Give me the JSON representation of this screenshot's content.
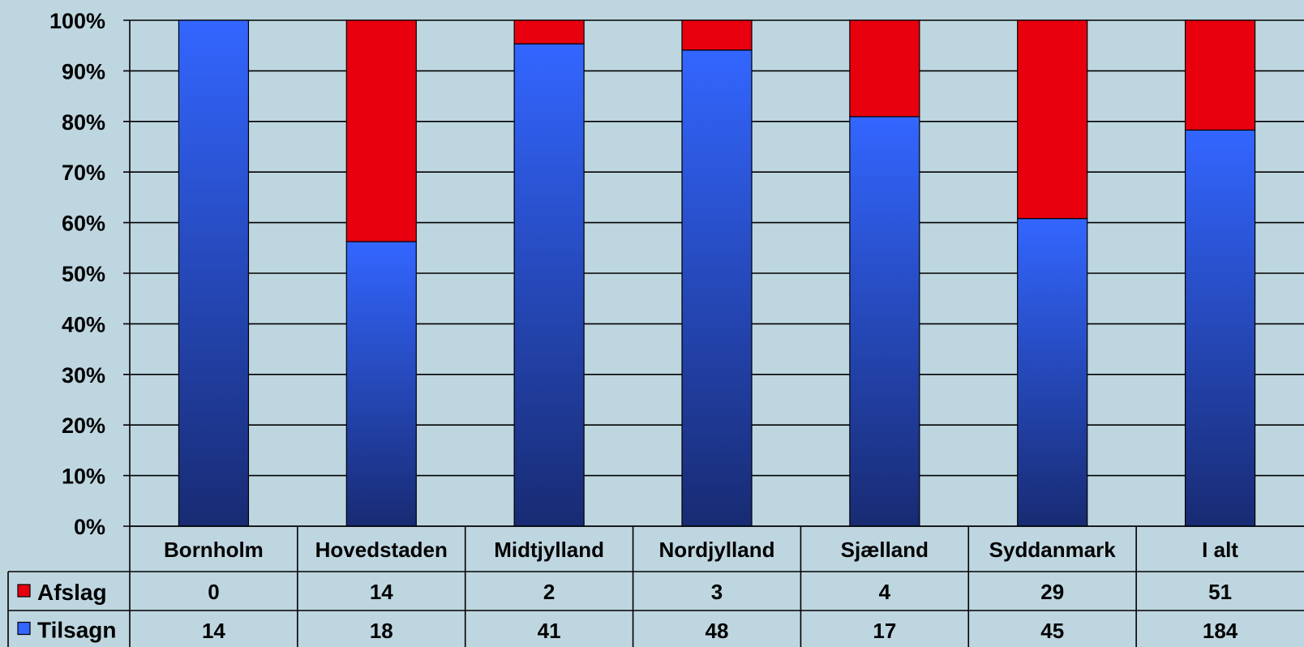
{
  "chart_data": {
    "type": "bar",
    "stacked": true,
    "normalized": true,
    "categories": [
      "Bornholm",
      "Hovedstaden",
      "Midtjylland",
      "Nordjylland",
      "Sjælland",
      "Syddanmark",
      "I alt"
    ],
    "series": [
      {
        "name": "Afslag",
        "values": [
          0,
          14,
          2,
          3,
          4,
          29,
          51
        ],
        "color": "#e8000f"
      },
      {
        "name": "Tilsagn",
        "values": [
          14,
          18,
          41,
          48,
          17,
          45,
          184
        ],
        "color": "#3366ff"
      }
    ],
    "yticks": [
      "0%",
      "10%",
      "20%",
      "30%",
      "40%",
      "50%",
      "60%",
      "70%",
      "80%",
      "90%",
      "100%"
    ],
    "ylim": [
      0,
      100
    ],
    "grid": true,
    "legend": "data-table-left",
    "data_table": true,
    "title": "",
    "xlabel": "",
    "ylabel": ""
  }
}
